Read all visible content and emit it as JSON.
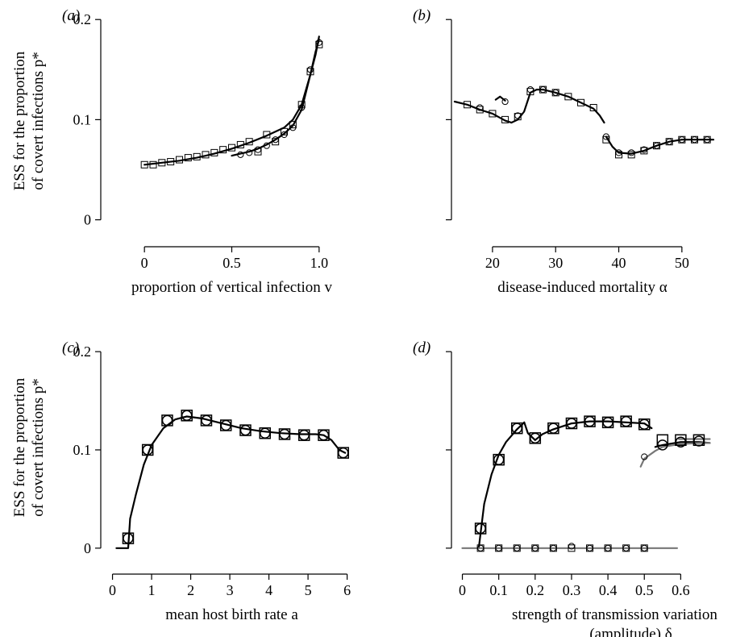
{
  "figure": {
    "ylabel_line1": "ESS for the proportion",
    "ylabel_line2": "of covert infections p*"
  },
  "chart_data": [
    {
      "id": "a",
      "panel_label": "(a)",
      "type": "line",
      "xlabel": "proportion of vertical infection v",
      "ylabel": "ESS for the proportion of covert infections p*",
      "xlim": [
        -0.25,
        1.25
      ],
      "ylim": [
        -0.01,
        0.205
      ],
      "xticks": [
        0,
        0.5,
        1.0
      ],
      "xtick_labels": [
        "0",
        "0.5",
        "1.0"
      ],
      "yticks": [
        0,
        0.1,
        0.2
      ],
      "ytick_labels": [
        "0",
        "0.1",
        "0.2"
      ],
      "curves": [
        {
          "color": "#000000",
          "points": [
            [
              0,
              0.055
            ],
            [
              0.1,
              0.057
            ],
            [
              0.2,
              0.059
            ],
            [
              0.3,
              0.062
            ],
            [
              0.4,
              0.066
            ],
            [
              0.5,
              0.071
            ],
            [
              0.6,
              0.077
            ],
            [
              0.7,
              0.084
            ],
            [
              0.8,
              0.092
            ],
            [
              0.85,
              0.1
            ],
            [
              0.9,
              0.115
            ],
            [
              0.95,
              0.145
            ],
            [
              0.98,
              0.165
            ],
            [
              1.0,
              0.183
            ]
          ]
        },
        {
          "color": "#000000",
          "points": [
            [
              0.5,
              0.064
            ],
            [
              0.55,
              0.066
            ],
            [
              0.6,
              0.068
            ],
            [
              0.65,
              0.071
            ],
            [
              0.7,
              0.075
            ],
            [
              0.75,
              0.08
            ],
            [
              0.8,
              0.086
            ],
            [
              0.85,
              0.094
            ],
            [
              0.9,
              0.11
            ],
            [
              0.95,
              0.145
            ],
            [
              0.98,
              0.168
            ],
            [
              1.0,
              0.18
            ]
          ]
        }
      ],
      "series": [
        {
          "marker": "square",
          "color": "#000000",
          "x": [
            0,
            0.05,
            0.1,
            0.15,
            0.2,
            0.25,
            0.3,
            0.35,
            0.4,
            0.45,
            0.5,
            0.55,
            0.6,
            0.65,
            0.7,
            0.75,
            0.8,
            0.85,
            0.9,
            0.95,
            1.0
          ],
          "y": [
            0.055,
            0.055,
            0.057,
            0.058,
            0.06,
            0.062,
            0.063,
            0.065,
            0.067,
            0.07,
            0.072,
            0.075,
            0.078,
            0.068,
            0.085,
            0.078,
            0.088,
            0.095,
            0.115,
            0.148,
            0.175
          ]
        },
        {
          "marker": "circle",
          "color": "#000000",
          "x": [
            0.55,
            0.6,
            0.65,
            0.7,
            0.75,
            0.8,
            0.85,
            0.9,
            0.95,
            1.0
          ],
          "y": [
            0.065,
            0.067,
            0.07,
            0.074,
            0.08,
            0.085,
            0.092,
            0.112,
            0.15,
            0.177
          ]
        }
      ]
    },
    {
      "id": "b",
      "panel_label": "(b)",
      "type": "line",
      "xlabel": "disease-induced mortality α",
      "ylabel": "",
      "xlim": [
        13.5,
        55
      ],
      "ylim": [
        -0.01,
        0.205
      ],
      "xticks": [
        20,
        30,
        40,
        50
      ],
      "xtick_labels": [
        "20",
        "30",
        "40",
        "50"
      ],
      "yticks": [
        0,
        0.1,
        0.2
      ],
      "ytick_labels": [
        "",
        "",
        ""
      ],
      "curves": [
        {
          "color": "#000000",
          "points": [
            [
              14,
              0.118
            ],
            [
              16,
              0.115
            ],
            [
              18,
              0.11
            ],
            [
              20,
              0.106
            ],
            [
              22,
              0.099
            ],
            [
              23,
              0.097
            ],
            [
              24,
              0.1
            ],
            [
              25,
              0.108
            ],
            [
              26,
              0.127
            ],
            [
              27,
              0.13
            ],
            [
              28,
              0.13
            ],
            [
              30,
              0.127
            ],
            [
              32,
              0.123
            ],
            [
              34,
              0.117
            ],
            [
              36,
              0.111
            ],
            [
              37,
              0.104
            ],
            [
              37.7,
              0.097
            ]
          ]
        },
        {
          "color": "#000000",
          "points": [
            [
              20.5,
              0.12
            ],
            [
              21.2,
              0.123
            ],
            [
              22,
              0.119
            ]
          ]
        },
        {
          "color": "#000000",
          "points": [
            [
              38,
              0.083
            ],
            [
              39,
              0.073
            ],
            [
              40,
              0.067
            ],
            [
              42,
              0.066
            ],
            [
              44,
              0.069
            ],
            [
              46,
              0.074
            ],
            [
              48,
              0.078
            ],
            [
              50,
              0.08
            ],
            [
              52,
              0.08
            ],
            [
              55,
              0.08
            ]
          ]
        }
      ],
      "series": [
        {
          "marker": "square",
          "color": "#000000",
          "x": [
            16,
            18,
            20,
            22,
            24,
            26,
            28,
            30,
            32,
            34,
            36,
            38,
            40,
            42,
            44,
            46,
            48,
            50,
            52,
            54
          ],
          "y": [
            0.115,
            0.11,
            0.106,
            0.1,
            0.103,
            0.128,
            0.13,
            0.127,
            0.123,
            0.117,
            0.112,
            0.08,
            0.065,
            0.065,
            0.069,
            0.074,
            0.078,
            0.08,
            0.08,
            0.08
          ]
        },
        {
          "marker": "circle",
          "color": "#000000",
          "x": [
            18,
            22,
            24,
            26,
            28,
            30,
            38,
            40,
            42,
            44,
            46,
            48,
            50,
            52,
            54
          ],
          "y": [
            0.112,
            0.118,
            0.104,
            0.13,
            0.13,
            0.127,
            0.083,
            0.067,
            0.067,
            0.07,
            0.074,
            0.078,
            0.08,
            0.08,
            0.08
          ]
        }
      ]
    },
    {
      "id": "c",
      "panel_label": "(c)",
      "type": "line",
      "xlabel": "mean host birth rate a",
      "ylabel": "ESS for the proportion of covert infections p*",
      "xlim": [
        -0.3,
        6.4
      ],
      "ylim": [
        -0.01,
        0.205
      ],
      "xticks": [
        0,
        1,
        2,
        3,
        4,
        5,
        6
      ],
      "xtick_labels": [
        "0",
        "1",
        "2",
        "3",
        "4",
        "5",
        "6"
      ],
      "yticks": [
        0,
        0.1,
        0.2
      ],
      "ytick_labels": [
        "0",
        "0.1",
        "0.2"
      ],
      "curves": [
        {
          "color": "#000000",
          "points": [
            [
              0.1,
              0
            ],
            [
              0.4,
              0
            ],
            [
              0.45,
              0.03
            ],
            [
              0.6,
              0.055
            ],
            [
              0.8,
              0.085
            ],
            [
              1.0,
              0.105
            ],
            [
              1.3,
              0.122
            ],
            [
              1.6,
              0.131
            ],
            [
              1.9,
              0.134
            ],
            [
              2.3,
              0.132
            ],
            [
              2.8,
              0.127
            ],
            [
              3.3,
              0.122
            ],
            [
              3.8,
              0.119
            ],
            [
              4.3,
              0.117
            ],
            [
              4.8,
              0.116
            ],
            [
              5.2,
              0.116
            ],
            [
              5.4,
              0.115
            ],
            [
              5.6,
              0.11
            ],
            [
              5.8,
              0.1
            ],
            [
              5.95,
              0.097
            ]
          ]
        }
      ],
      "series": [
        {
          "marker": "square",
          "color": "#000000",
          "size": "large",
          "x": [
            0.4,
            0.9,
            1.4,
            1.9,
            2.4,
            2.9,
            3.4,
            3.9,
            4.4,
            4.9,
            5.4,
            5.9
          ],
          "y": [
            0.01,
            0.1,
            0.13,
            0.135,
            0.13,
            0.125,
            0.12,
            0.117,
            0.116,
            0.115,
            0.115,
            0.097
          ]
        },
        {
          "marker": "circle",
          "color": "#000000",
          "size": "large",
          "x": [
            0.4,
            0.9,
            1.4,
            1.9,
            2.4,
            2.9,
            3.4,
            3.9,
            4.4,
            4.9,
            5.4,
            5.9
          ],
          "y": [
            0.01,
            0.1,
            0.13,
            0.135,
            0.13,
            0.125,
            0.12,
            0.117,
            0.116,
            0.115,
            0.115,
            0.097
          ]
        }
      ]
    },
    {
      "id": "d",
      "panel_label": "(d)",
      "type": "line",
      "xlabel_line1": "strength of transmission variation",
      "xlabel_line2": "(amplitude) δ",
      "ylabel": "",
      "xlim": [
        -0.03,
        0.69
      ],
      "ylim": [
        -0.01,
        0.205
      ],
      "xticks": [
        0,
        0.1,
        0.2,
        0.3,
        0.4,
        0.5,
        0.6
      ],
      "xtick_labels": [
        "0",
        "0.1",
        "0.2",
        "0.3",
        "0.4",
        "0.5",
        "0.6"
      ],
      "yticks": [
        0,
        0.1,
        0.2
      ],
      "ytick_labels": [
        "",
        "",
        ""
      ],
      "curves": [
        {
          "color": "#000000",
          "points": [
            [
              0.045,
              0
            ],
            [
              0.05,
              0.015
            ],
            [
              0.06,
              0.045
            ],
            [
              0.08,
              0.075
            ],
            [
              0.1,
              0.095
            ],
            [
              0.12,
              0.108
            ],
            [
              0.15,
              0.121
            ],
            [
              0.17,
              0.128
            ],
            [
              0.18,
              0.117
            ],
            [
              0.2,
              0.11
            ],
            [
              0.22,
              0.116
            ],
            [
              0.25,
              0.121
            ],
            [
              0.3,
              0.127
            ],
            [
              0.35,
              0.129
            ],
            [
              0.4,
              0.129
            ],
            [
              0.45,
              0.128
            ],
            [
              0.5,
              0.127
            ],
            [
              0.52,
              0.122
            ]
          ]
        },
        {
          "color": "#000000",
          "points": [
            [
              0.53,
              0.103
            ],
            [
              0.55,
              0.105
            ],
            [
              0.6,
              0.108
            ],
            [
              0.65,
              0.108
            ],
            [
              0.68,
              0.107
            ]
          ]
        },
        {
          "color": "#777777",
          "points": [
            [
              0.49,
              0.083
            ],
            [
              0.5,
              0.091
            ],
            [
              0.53,
              0.099
            ],
            [
              0.55,
              0.103
            ],
            [
              0.6,
              0.106
            ],
            [
              0.65,
              0.107
            ],
            [
              0.68,
              0.107
            ]
          ]
        },
        {
          "color": "#777777",
          "points": [
            [
              0,
              0
            ],
            [
              0.59,
              0
            ]
          ]
        },
        {
          "color": "#777777",
          "points": [
            [
              0.595,
              0.111
            ],
            [
              0.62,
              0.111
            ],
            [
              0.65,
              0.111
            ],
            [
              0.68,
              0.111
            ]
          ]
        }
      ],
      "series": [
        {
          "marker": "square",
          "color": "#000000",
          "size": "large",
          "x": [
            0.05,
            0.1,
            0.15,
            0.2,
            0.25,
            0.3,
            0.35,
            0.4,
            0.45,
            0.5,
            0.55,
            0.6,
            0.65
          ],
          "y": [
            0.02,
            0.09,
            0.122,
            0.112,
            0.122,
            0.127,
            0.129,
            0.128,
            0.129,
            0.126,
            0.11,
            0.11,
            0.11
          ]
        },
        {
          "marker": "circle",
          "color": "#000000",
          "size": "large",
          "x": [
            0.05,
            0.1,
            0.15,
            0.2,
            0.25,
            0.3,
            0.35,
            0.4,
            0.45,
            0.5,
            0.55,
            0.6,
            0.65
          ],
          "y": [
            0.02,
            0.09,
            0.122,
            0.112,
            0.122,
            0.127,
            0.129,
            0.128,
            0.129,
            0.126,
            0.105,
            0.108,
            0.109
          ]
        },
        {
          "marker": "square",
          "color": "#000000",
          "size": "small",
          "x": [
            0.05,
            0.1,
            0.15,
            0.2,
            0.25,
            0.3,
            0.35,
            0.4,
            0.45,
            0.5
          ],
          "y": [
            0,
            0,
            0,
            0,
            0,
            0,
            0,
            0,
            0,
            0
          ]
        },
        {
          "marker": "circle",
          "color": "#000000",
          "size": "small",
          "x": [
            0.05,
            0.1,
            0.15,
            0.2,
            0.25,
            0.3,
            0.35,
            0.4,
            0.45,
            0.5
          ],
          "y": [
            0,
            0,
            0,
            0,
            0,
            0.002,
            0,
            0,
            0,
            0
          ]
        },
        {
          "marker": "circle",
          "color": "#000000",
          "size": "small",
          "x": [
            0.5
          ],
          "y": [
            0.093
          ]
        }
      ]
    }
  ]
}
